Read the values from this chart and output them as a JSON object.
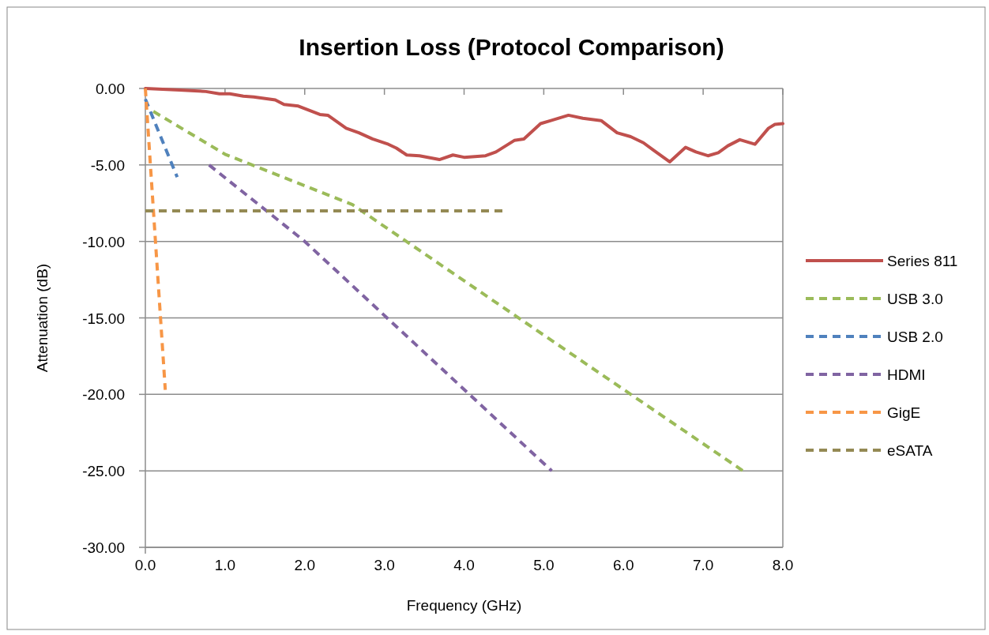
{
  "chart_data": {
    "type": "line",
    "title": "Insertion Loss (Protocol Comparison)",
    "xlabel": "Frequency (GHz)",
    "ylabel": "Attenuation (dB)",
    "xlim": [
      0,
      8
    ],
    "xticks": [
      {
        "value": 0,
        "label": "0.0"
      },
      {
        "value": 1,
        "label": "1.0"
      },
      {
        "value": 2,
        "label": "2.0"
      },
      {
        "value": 3,
        "label": "3.0"
      },
      {
        "value": 4,
        "label": "4.0"
      },
      {
        "value": 5,
        "label": "5.0"
      },
      {
        "value": 6,
        "label": "6.0"
      },
      {
        "value": 7,
        "label": "7.0"
      },
      {
        "value": 8,
        "label": "8.0"
      }
    ],
    "ylim": [
      -30,
      0
    ],
    "yticks": [
      {
        "value": -30,
        "label": "-30.00"
      },
      {
        "value": -25,
        "label": "-25.00"
      },
      {
        "value": -20,
        "label": "-20.00"
      },
      {
        "value": -15,
        "label": "-15.00"
      },
      {
        "value": -10,
        "label": "-10.00"
      },
      {
        "value": -5,
        "label": "-5.00"
      },
      {
        "value": 0,
        "label": "0.00"
      }
    ],
    "grid": "y",
    "legend": "right",
    "marker": "none",
    "series": [
      {
        "name": "Series 811",
        "color": "#c0504d",
        "line_style": "solid",
        "x": [
          0,
          0.43,
          0.76,
          0.93,
          1.06,
          1.23,
          1.36,
          1.63,
          1.74,
          1.92,
          2.19,
          2.29,
          2.52,
          2.68,
          2.85,
          3.05,
          3.15,
          3.28,
          3.44,
          3.69,
          3.86,
          4.0,
          4.27,
          4.4,
          4.63,
          4.75,
          4.96,
          5.09,
          5.31,
          5.49,
          5.72,
          5.92,
          6.09,
          6.25,
          6.38,
          6.58,
          6.78,
          6.91,
          7.06,
          7.19,
          7.31,
          7.46,
          7.65,
          7.82,
          7.9,
          8.0
        ],
        "values": [
          0,
          -0.1,
          -0.2,
          -0.35,
          -0.35,
          -0.5,
          -0.55,
          -0.75,
          -1.05,
          -1.15,
          -1.7,
          -1.75,
          -2.6,
          -2.9,
          -3.3,
          -3.65,
          -3.9,
          -4.35,
          -4.4,
          -4.65,
          -4.35,
          -4.5,
          -4.4,
          -4.15,
          -3.4,
          -3.3,
          -2.3,
          -2.1,
          -1.75,
          -1.95,
          -2.1,
          -2.9,
          -3.15,
          -3.55,
          -4.05,
          -4.8,
          -3.85,
          -4.15,
          -4.4,
          -4.2,
          -3.75,
          -3.35,
          -3.65,
          -2.6,
          -2.35,
          -2.3
        ]
      },
      {
        "name": "USB 3.0",
        "color": "#9bbb59",
        "line_style": "dashed",
        "x": [
          0.1,
          1.0,
          2.6,
          7.5
        ],
        "values": [
          -1.5,
          -4.3,
          -7.6,
          -25
        ]
      },
      {
        "name": "USB 2.0",
        "color": "#4f81bd",
        "line_style": "dashed",
        "x": [
          0,
          0.4
        ],
        "values": [
          -0.7,
          -5.8
        ]
      },
      {
        "name": "HDMI",
        "color": "#8064a2",
        "line_style": "dashed",
        "x": [
          0.8,
          2.0,
          5.1
        ],
        "values": [
          -5,
          -10,
          -25
        ]
      },
      {
        "name": "GigE",
        "color": "#f79646",
        "line_style": "dashed",
        "x": [
          0,
          0.25
        ],
        "values": [
          0,
          -19.7
        ]
      },
      {
        "name": "eSATA",
        "color": "#948a54",
        "line_style": "dashed",
        "x": [
          0,
          4.5
        ],
        "values": [
          -8,
          -8
        ]
      }
    ]
  }
}
